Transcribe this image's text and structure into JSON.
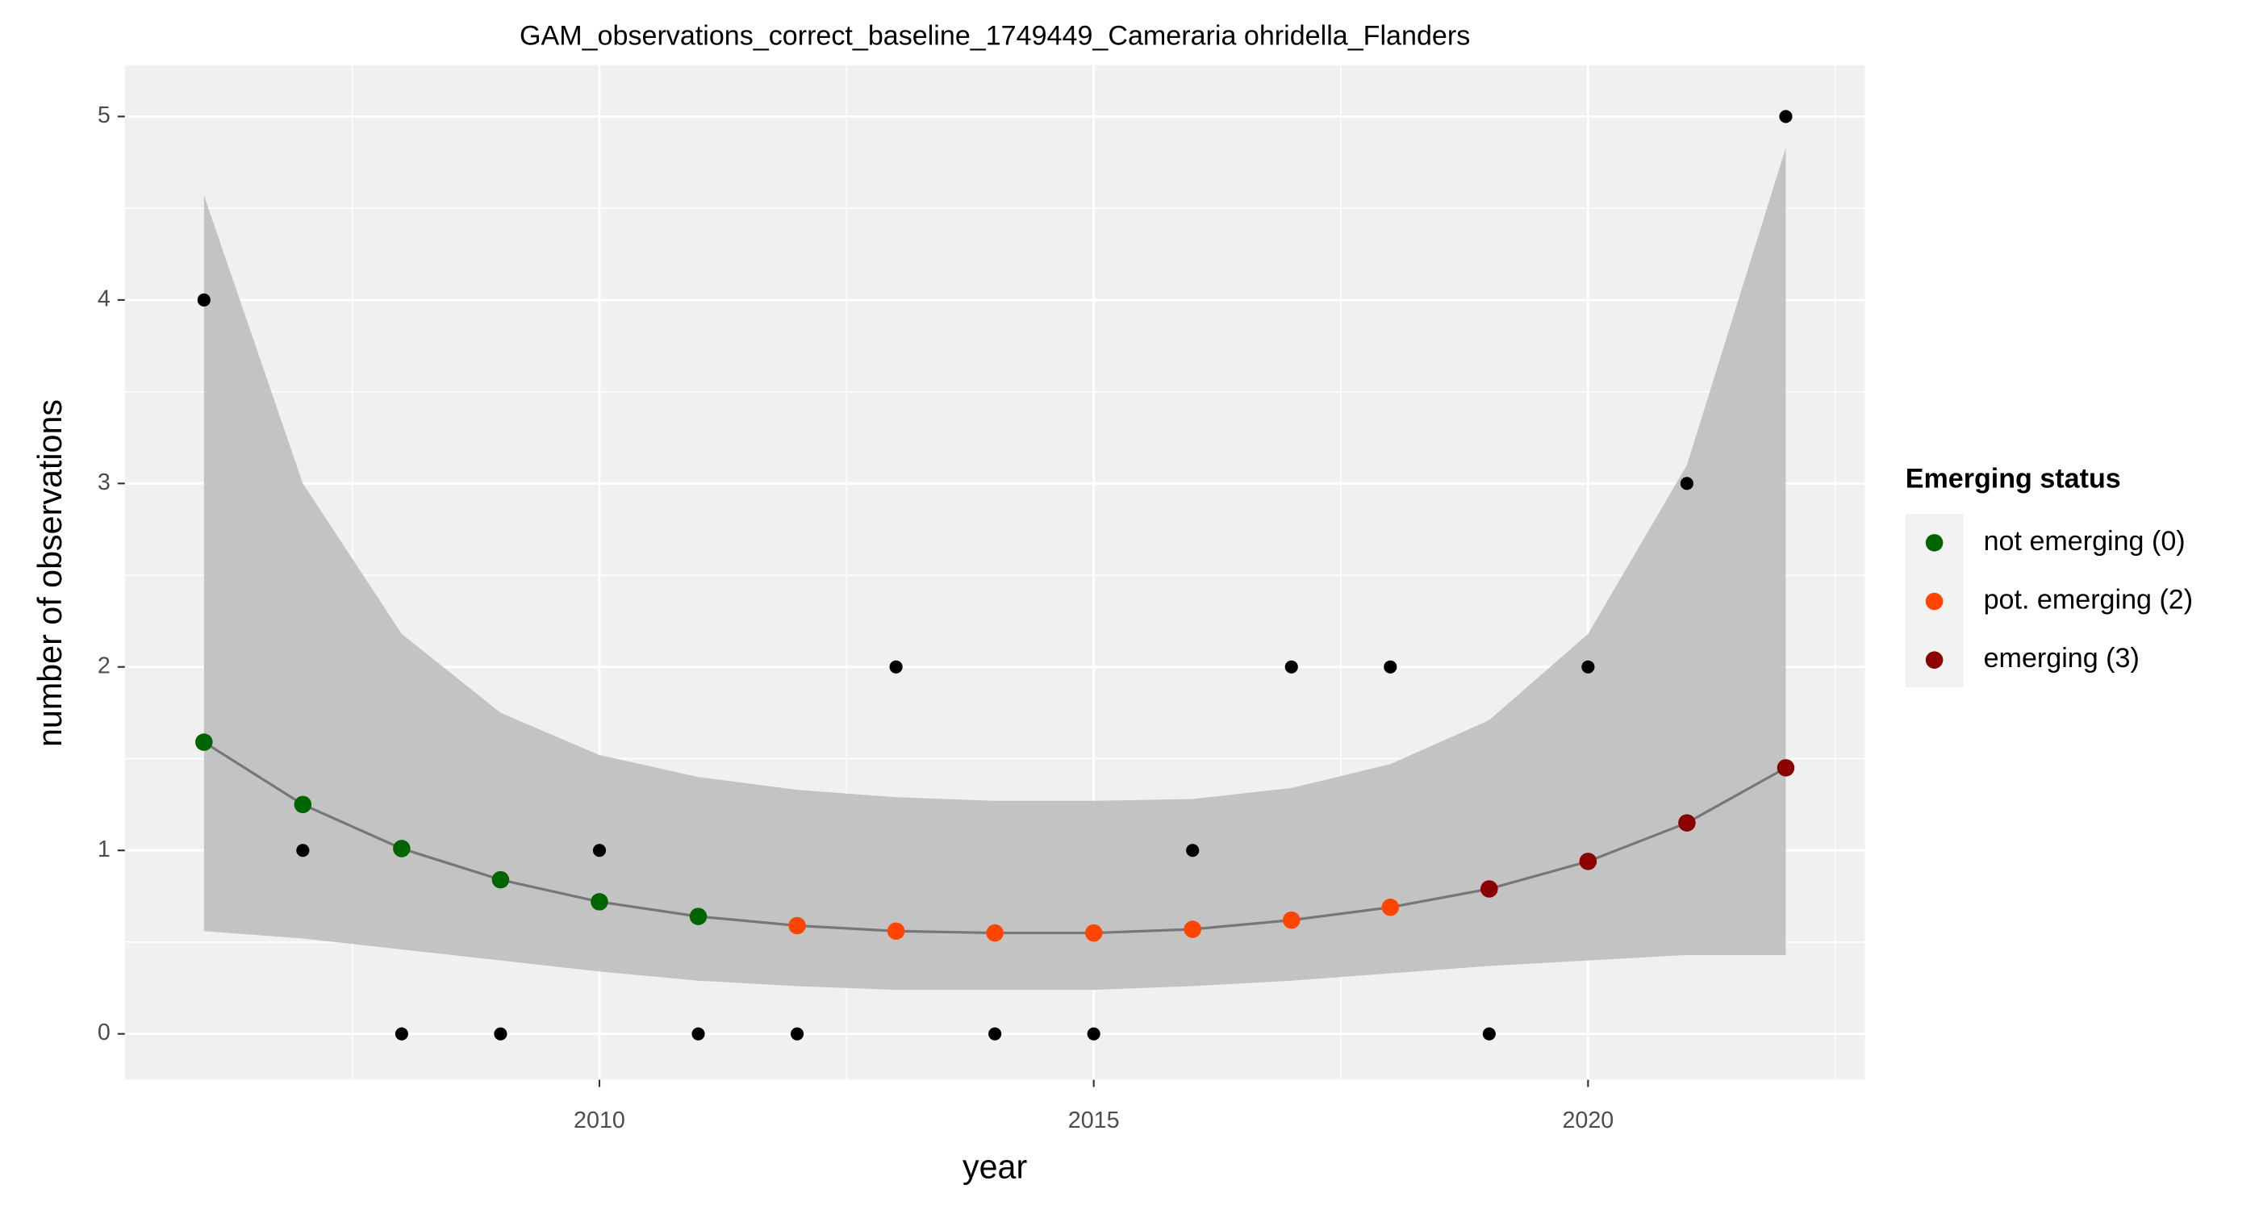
{
  "chart_data": {
    "type": "scatter",
    "title": "GAM_observations_correct_baseline_1749449_Cameraria ohridella_Flanders",
    "xlabel": "year",
    "ylabel": "number of observations",
    "x": [
      2006,
      2007,
      2008,
      2009,
      2010,
      2011,
      2012,
      2013,
      2014,
      2015,
      2016,
      2017,
      2018,
      2019,
      2020,
      2021,
      2022
    ],
    "observed": {
      "color": "#000000",
      "values": [
        4,
        1,
        0,
        0,
        1,
        0,
        0,
        2,
        0,
        0,
        1,
        2,
        2,
        0,
        2,
        3,
        5
      ]
    },
    "fit": {
      "line_color": "#777777",
      "band_color": "#bebebe",
      "values": [
        1.59,
        1.25,
        1.01,
        0.84,
        0.72,
        0.64,
        0.59,
        0.56,
        0.55,
        0.55,
        0.57,
        0.62,
        0.69,
        0.79,
        0.94,
        1.15,
        1.45
      ],
      "upper": [
        4.57,
        3.0,
        2.18,
        1.75,
        1.52,
        1.4,
        1.33,
        1.29,
        1.27,
        1.27,
        1.28,
        1.34,
        1.47,
        1.71,
        2.18,
        3.1,
        4.83
      ],
      "lower": [
        0.56,
        0.52,
        0.46,
        0.4,
        0.34,
        0.29,
        0.26,
        0.24,
        0.24,
        0.24,
        0.26,
        0.29,
        0.33,
        0.37,
        0.4,
        0.43,
        0.43
      ],
      "status": [
        0,
        0,
        0,
        0,
        0,
        0,
        2,
        2,
        2,
        2,
        2,
        2,
        2,
        3,
        3,
        3,
        3
      ]
    },
    "legend": {
      "title": "Emerging status",
      "position": "right",
      "entries": [
        {
          "code": 0,
          "name": "not emerging (0)",
          "color": "#006400"
        },
        {
          "code": 2,
          "name": "pot. emerging (2)",
          "color": "#ff4500"
        },
        {
          "code": 3,
          "name": "emerging (3)",
          "color": "#8b0000"
        }
      ]
    },
    "xlim": [
      2005.2,
      2022.8
    ],
    "ylim": [
      -0.25,
      5.28
    ],
    "xticks": [
      2010,
      2015,
      2020
    ],
    "yticks": [
      0,
      1,
      2,
      3,
      4,
      5
    ],
    "x_minor_grid": [
      2007.5,
      2012.5,
      2017.5,
      2022.5
    ],
    "y_minor_grid": [
      0.5,
      1.5,
      2.5,
      3.5,
      4.5
    ],
    "grid": true
  }
}
